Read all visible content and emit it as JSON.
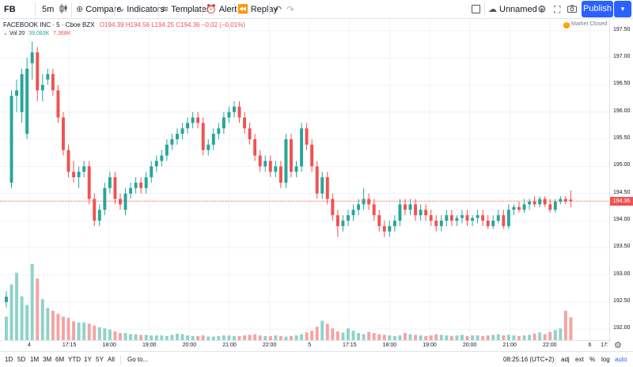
{
  "toolbar": {
    "symbol": "FB",
    "interval": "5m",
    "compare": "Compare",
    "indicators": "Indicators",
    "templates": "Templates",
    "alert": "Alert",
    "replay": "Replay",
    "layout_name": "Unnamed",
    "publish": "Publish"
  },
  "legend": {
    "name": "FACEBOOK INC · 5 · Cboe BZX",
    "ohlc": "O194.39 H194.56 L194.25 C194.36 −0.02 (−0.01%)",
    "vol_label": "Vol 20",
    "vol_value": "39.083K",
    "vol_ma": "7.368K",
    "market_status": "Market Closed",
    "market_status_icon": "!"
  },
  "price_scale": {
    "ticks": [
      "197.50",
      "197.00",
      "196.50",
      "196.00",
      "195.50",
      "195.00",
      "194.50",
      "194.00",
      "193.50",
      "193.00",
      "192.50",
      "192.00"
    ],
    "last_price": "194.36"
  },
  "time_axis": {
    "ticks": [
      "4",
      "17:15",
      "18:00",
      "19:00",
      "20:00",
      "21:00",
      "22:00",
      "5",
      "17:15",
      "18:00",
      "19:00",
      "20:00",
      "21:00",
      "22:00",
      "6",
      "17:"
    ]
  },
  "bottombar": {
    "ranges": [
      "1D",
      "5D",
      "1M",
      "3M",
      "6M",
      "YTD",
      "1Y",
      "5Y",
      "All"
    ],
    "goto": "Go to...",
    "clock": "08:25:16 (UTC+2)",
    "adj": "adj",
    "ext": "ext",
    "pct": "%",
    "log": "log",
    "auto": "auto"
  },
  "colors": {
    "up": "#26a69a",
    "down": "#ef5350",
    "accent": "#2962ff",
    "vol_up": "#8ed3c9",
    "vol_down": "#f5a3a1"
  },
  "chart_data": {
    "type": "candlestick",
    "ylim": [
      191.8,
      197.7
    ],
    "last_price": 194.36,
    "candles": [
      {
        "o": 192.5,
        "h": 192.7,
        "l": 192.4,
        "c": 192.6
      },
      {
        "o": 194.7,
        "h": 196.4,
        "l": 194.6,
        "c": 196.3
      },
      {
        "o": 196.3,
        "h": 196.6,
        "l": 196.0,
        "c": 196.4
      },
      {
        "o": 196.0,
        "h": 196.8,
        "l": 195.8,
        "c": 196.7
      },
      {
        "o": 195.6,
        "h": 197.0,
        "l": 195.5,
        "c": 196.8
      },
      {
        "o": 196.9,
        "h": 197.3,
        "l": 196.6,
        "c": 197.1
      },
      {
        "o": 197.1,
        "h": 197.2,
        "l": 196.2,
        "c": 196.4
      },
      {
        "o": 196.4,
        "h": 196.7,
        "l": 196.2,
        "c": 196.5
      },
      {
        "o": 196.6,
        "h": 196.8,
        "l": 196.5,
        "c": 196.7
      },
      {
        "o": 196.7,
        "h": 196.8,
        "l": 196.3,
        "c": 196.4
      },
      {
        "o": 196.4,
        "h": 196.5,
        "l": 195.8,
        "c": 195.9
      },
      {
        "o": 195.9,
        "h": 196.0,
        "l": 195.2,
        "c": 195.3
      },
      {
        "o": 195.3,
        "h": 195.4,
        "l": 194.8,
        "c": 194.9
      },
      {
        "o": 194.9,
        "h": 195.1,
        "l": 194.7,
        "c": 194.8
      },
      {
        "o": 194.8,
        "h": 195.0,
        "l": 194.6,
        "c": 194.9
      },
      {
        "o": 194.9,
        "h": 195.1,
        "l": 194.8,
        "c": 195.0
      },
      {
        "o": 195.0,
        "h": 195.1,
        "l": 194.3,
        "c": 194.4
      },
      {
        "o": 194.4,
        "h": 194.5,
        "l": 193.9,
        "c": 194.0
      },
      {
        "o": 194.0,
        "h": 194.3,
        "l": 193.9,
        "c": 194.2
      },
      {
        "o": 194.2,
        "h": 194.7,
        "l": 194.1,
        "c": 194.6
      },
      {
        "o": 194.6,
        "h": 194.9,
        "l": 194.5,
        "c": 194.8
      },
      {
        "o": 194.8,
        "h": 194.9,
        "l": 194.3,
        "c": 194.4
      },
      {
        "o": 194.4,
        "h": 194.5,
        "l": 194.2,
        "c": 194.3
      },
      {
        "o": 194.2,
        "h": 194.6,
        "l": 194.1,
        "c": 194.5
      },
      {
        "o": 194.5,
        "h": 194.7,
        "l": 194.4,
        "c": 194.6
      },
      {
        "o": 194.6,
        "h": 194.8,
        "l": 194.5,
        "c": 194.7
      },
      {
        "o": 194.7,
        "h": 194.8,
        "l": 194.5,
        "c": 194.6
      },
      {
        "o": 194.6,
        "h": 194.9,
        "l": 194.5,
        "c": 194.8
      },
      {
        "o": 194.8,
        "h": 195.1,
        "l": 194.7,
        "c": 195.0
      },
      {
        "o": 195.0,
        "h": 195.2,
        "l": 194.9,
        "c": 195.1
      },
      {
        "o": 195.1,
        "h": 195.3,
        "l": 195.0,
        "c": 195.2
      },
      {
        "o": 195.2,
        "h": 195.5,
        "l": 195.1,
        "c": 195.4
      },
      {
        "o": 195.4,
        "h": 195.6,
        "l": 195.3,
        "c": 195.5
      },
      {
        "o": 195.5,
        "h": 195.7,
        "l": 195.4,
        "c": 195.6
      },
      {
        "o": 195.6,
        "h": 195.8,
        "l": 195.5,
        "c": 195.7
      },
      {
        "o": 195.7,
        "h": 195.9,
        "l": 195.6,
        "c": 195.8
      },
      {
        "o": 195.8,
        "h": 196.0,
        "l": 195.7,
        "c": 195.9
      },
      {
        "o": 195.9,
        "h": 196.0,
        "l": 195.7,
        "c": 195.8
      },
      {
        "o": 195.8,
        "h": 195.9,
        "l": 195.2,
        "c": 195.3
      },
      {
        "o": 195.3,
        "h": 195.5,
        "l": 195.2,
        "c": 195.4
      },
      {
        "o": 195.4,
        "h": 195.7,
        "l": 195.3,
        "c": 195.6
      },
      {
        "o": 195.6,
        "h": 195.8,
        "l": 195.5,
        "c": 195.7
      },
      {
        "o": 195.7,
        "h": 196.0,
        "l": 195.6,
        "c": 195.9
      },
      {
        "o": 195.9,
        "h": 196.1,
        "l": 195.8,
        "c": 196.0
      },
      {
        "o": 196.0,
        "h": 196.2,
        "l": 195.9,
        "c": 196.1
      },
      {
        "o": 196.1,
        "h": 196.2,
        "l": 195.8,
        "c": 195.9
      },
      {
        "o": 195.9,
        "h": 196.0,
        "l": 195.6,
        "c": 195.7
      },
      {
        "o": 195.7,
        "h": 195.8,
        "l": 195.4,
        "c": 195.5
      },
      {
        "o": 195.5,
        "h": 195.6,
        "l": 195.1,
        "c": 195.2
      },
      {
        "o": 195.2,
        "h": 195.3,
        "l": 194.9,
        "c": 195.0
      },
      {
        "o": 195.0,
        "h": 195.2,
        "l": 194.9,
        "c": 195.1
      },
      {
        "o": 195.1,
        "h": 195.2,
        "l": 194.8,
        "c": 194.9
      },
      {
        "o": 194.9,
        "h": 195.1,
        "l": 194.8,
        "c": 195.0
      },
      {
        "o": 195.0,
        "h": 195.1,
        "l": 194.6,
        "c": 194.7
      },
      {
        "o": 194.7,
        "h": 195.6,
        "l": 194.6,
        "c": 195.5
      },
      {
        "o": 195.5,
        "h": 195.6,
        "l": 194.8,
        "c": 194.9
      },
      {
        "o": 194.9,
        "h": 195.1,
        "l": 194.8,
        "c": 195.0
      },
      {
        "o": 195.0,
        "h": 195.8,
        "l": 194.9,
        "c": 195.7
      },
      {
        "o": 195.7,
        "h": 195.8,
        "l": 195.3,
        "c": 195.4
      },
      {
        "o": 195.4,
        "h": 195.5,
        "l": 194.9,
        "c": 195.0
      },
      {
        "o": 195.0,
        "h": 195.1,
        "l": 194.4,
        "c": 194.5
      },
      {
        "o": 194.5,
        "h": 194.9,
        "l": 194.4,
        "c": 194.8
      },
      {
        "o": 194.8,
        "h": 194.9,
        "l": 194.3,
        "c": 194.4
      },
      {
        "o": 194.4,
        "h": 194.5,
        "l": 194.0,
        "c": 194.1
      },
      {
        "o": 194.1,
        "h": 194.2,
        "l": 193.7,
        "c": 193.9
      },
      {
        "o": 193.9,
        "h": 194.1,
        "l": 193.8,
        "c": 194.0
      },
      {
        "o": 194.0,
        "h": 194.2,
        "l": 193.9,
        "c": 194.1
      },
      {
        "o": 194.1,
        "h": 194.3,
        "l": 194.0,
        "c": 194.2
      },
      {
        "o": 194.2,
        "h": 194.4,
        "l": 194.1,
        "c": 194.3
      },
      {
        "o": 194.3,
        "h": 194.6,
        "l": 194.2,
        "c": 194.4
      },
      {
        "o": 194.4,
        "h": 194.5,
        "l": 194.2,
        "c": 194.3
      },
      {
        "o": 194.3,
        "h": 194.4,
        "l": 194.0,
        "c": 194.1
      },
      {
        "o": 194.1,
        "h": 194.2,
        "l": 193.8,
        "c": 193.9
      },
      {
        "o": 193.9,
        "h": 194.0,
        "l": 193.7,
        "c": 193.8
      },
      {
        "o": 193.8,
        "h": 194.0,
        "l": 193.7,
        "c": 193.9
      },
      {
        "o": 193.9,
        "h": 194.1,
        "l": 193.8,
        "c": 194.0
      },
      {
        "o": 194.0,
        "h": 194.4,
        "l": 193.9,
        "c": 194.3
      },
      {
        "o": 194.3,
        "h": 194.4,
        "l": 194.1,
        "c": 194.2
      },
      {
        "o": 194.2,
        "h": 194.4,
        "l": 194.1,
        "c": 194.3
      },
      {
        "o": 194.3,
        "h": 194.4,
        "l": 194.0,
        "c": 194.1
      },
      {
        "o": 194.1,
        "h": 194.3,
        "l": 194.0,
        "c": 194.2
      },
      {
        "o": 194.2,
        "h": 194.3,
        "l": 194.0,
        "c": 194.1
      },
      {
        "o": 194.1,
        "h": 194.2,
        "l": 193.9,
        "c": 194.0
      },
      {
        "o": 194.0,
        "h": 194.1,
        "l": 193.8,
        "c": 193.9
      },
      {
        "o": 193.9,
        "h": 194.1,
        "l": 193.8,
        "c": 194.0
      },
      {
        "o": 194.0,
        "h": 194.2,
        "l": 193.9,
        "c": 194.1
      },
      {
        "o": 194.1,
        "h": 194.2,
        "l": 193.9,
        "c": 194.0
      },
      {
        "o": 194.0,
        "h": 194.1,
        "l": 193.9,
        "c": 194.05
      },
      {
        "o": 194.05,
        "h": 194.2,
        "l": 193.95,
        "c": 194.1
      },
      {
        "o": 194.1,
        "h": 194.2,
        "l": 193.9,
        "c": 194.0
      },
      {
        "o": 194.0,
        "h": 194.1,
        "l": 193.9,
        "c": 194.05
      },
      {
        "o": 194.05,
        "h": 194.2,
        "l": 193.95,
        "c": 194.1
      },
      {
        "o": 194.1,
        "h": 194.2,
        "l": 193.9,
        "c": 194.0
      },
      {
        "o": 194.0,
        "h": 194.1,
        "l": 193.85,
        "c": 193.9
      },
      {
        "o": 193.9,
        "h": 194.1,
        "l": 193.85,
        "c": 194.0
      },
      {
        "o": 194.0,
        "h": 194.2,
        "l": 193.95,
        "c": 194.1
      },
      {
        "o": 194.1,
        "h": 194.2,
        "l": 193.85,
        "c": 193.9
      },
      {
        "o": 193.9,
        "h": 194.3,
        "l": 193.85,
        "c": 194.2
      },
      {
        "o": 194.2,
        "h": 194.3,
        "l": 194.1,
        "c": 194.25
      },
      {
        "o": 194.25,
        "h": 194.35,
        "l": 194.15,
        "c": 194.2
      },
      {
        "o": 194.2,
        "h": 194.4,
        "l": 194.15,
        "c": 194.3
      },
      {
        "o": 194.3,
        "h": 194.4,
        "l": 194.2,
        "c": 194.35
      },
      {
        "o": 194.35,
        "h": 194.45,
        "l": 194.25,
        "c": 194.3
      },
      {
        "o": 194.3,
        "h": 194.45,
        "l": 194.25,
        "c": 194.4
      },
      {
        "o": 194.4,
        "h": 194.45,
        "l": 194.25,
        "c": 194.3
      },
      {
        "o": 194.3,
        "h": 194.4,
        "l": 194.15,
        "c": 194.2
      },
      {
        "o": 194.2,
        "h": 194.4,
        "l": 194.15,
        "c": 194.35
      },
      {
        "o": 194.35,
        "h": 194.45,
        "l": 194.3,
        "c": 194.4
      },
      {
        "o": 194.4,
        "h": 194.45,
        "l": 194.3,
        "c": 194.35
      },
      {
        "o": 194.39,
        "h": 194.56,
        "l": 194.25,
        "c": 194.36
      }
    ],
    "volume": [
      4.0,
      9.5,
      11.5,
      7.5,
      6.0,
      13.0,
      10.5,
      7.0,
      5.5,
      5.0,
      4.5,
      4.0,
      3.8,
      3.2,
      3.0,
      3.0,
      2.8,
      2.5,
      2.2,
      2.0,
      1.8,
      1.5,
      1.2,
      1.2,
      1.0,
      1.0,
      0.9,
      0.9,
      0.8,
      0.8,
      0.8,
      0.7,
      0.9,
      1.1,
      1.0,
      0.8,
      0.7,
      0.7,
      0.8,
      0.6,
      0.6,
      0.7,
      0.8,
      0.8,
      0.7,
      0.7,
      0.8,
      0.9,
      1.0,
      0.8,
      0.7,
      0.7,
      0.8,
      0.7,
      0.6,
      0.7,
      0.8,
      1.0,
      1.3,
      1.6,
      2.3,
      3.3,
      2.8,
      2.0,
      1.5,
      1.3,
      2.0,
      1.6,
      1.2,
      1.0,
      1.4,
      1.2,
      1.0,
      0.9,
      0.8,
      0.7,
      0.8,
      1.2,
      1.0,
      0.9,
      0.8,
      0.7,
      0.8,
      1.0,
      0.9,
      0.8,
      0.7,
      0.8,
      0.9,
      0.7,
      0.8,
      0.8,
      0.7,
      0.8,
      0.9,
      1.0,
      0.8,
      0.9,
      0.8,
      0.7,
      0.8,
      0.9,
      1.1,
      1.3,
      1.0,
      1.4,
      1.7,
      2.0,
      5.0,
      3.9
    ]
  }
}
